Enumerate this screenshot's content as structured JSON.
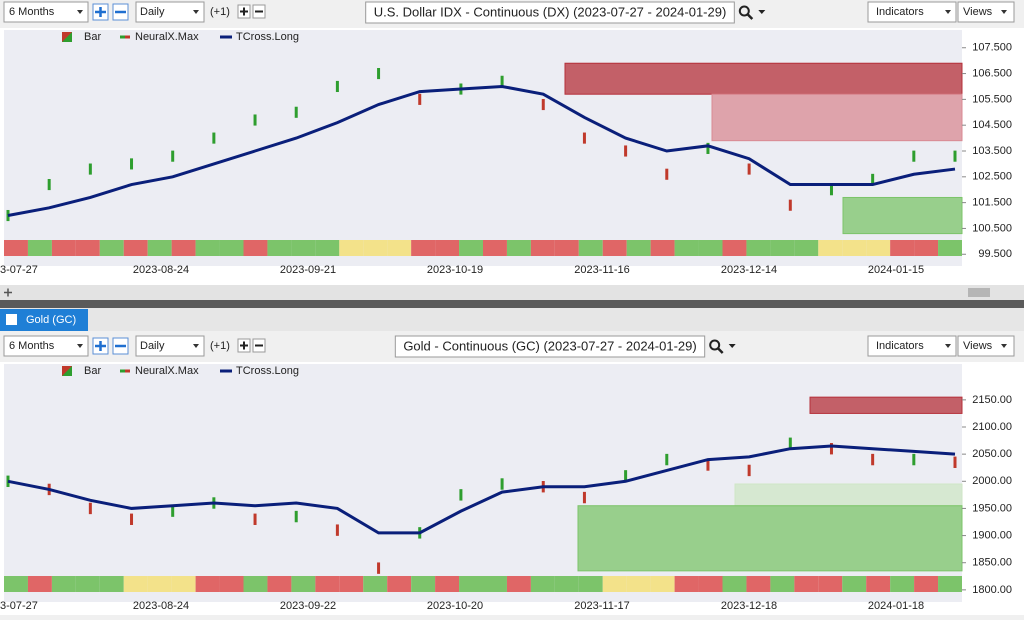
{
  "panels": [
    {
      "toolbar": {
        "period": "6 Months",
        "interval": "Daily",
        "offset": "(+1)",
        "title": "U.S. Dollar IDX - Continuous (DX) (2023-07-27 - 2024-01-29)",
        "indicators": "Indicators",
        "views": "Views"
      },
      "legend": [
        "Bar",
        "NeuralX.Max",
        "TCross.Long"
      ],
      "chart": {
        "type": "line",
        "x_labels": [
          "3-07-27",
          "2023-08-24",
          "2023-09-21",
          "2023-10-19",
          "2023-11-16",
          "2023-12-14",
          "2024-01-15"
        ],
        "series": [
          {
            "color": "#2e9e2e",
            "values": [
              101.0,
              102.2,
              102.8,
              103.0,
              103.3,
              104.0,
              104.7,
              105.0,
              106.0,
              106.5,
              105.5,
              105.9,
              106.2,
              105.3,
              104.0,
              103.5,
              102.6,
              103.6,
              102.8,
              101.4,
              102.0,
              102.4,
              103.3,
              103.3
            ]
          },
          {
            "color": "#0a1f7a",
            "values": [
              101.0,
              101.3,
              101.7,
              102.2,
              102.5,
              103.0,
              103.5,
              104.0,
              104.6,
              105.3,
              105.8,
              105.9,
              106.0,
              105.7,
              104.8,
              104.0,
              103.5,
              103.7,
              103.2,
              102.2,
              102.2,
              102.2,
              102.6,
              102.8
            ]
          }
        ],
        "zones": [
          {
            "low": 105.7,
            "high": 106.9,
            "color": "#b5303a"
          },
          {
            "low": 103.9,
            "high": 105.7,
            "color": "#d98a93"
          },
          {
            "low": 100.3,
            "high": 101.7,
            "color": "#7cc46a"
          }
        ],
        "ylim": [
          99.2,
          107.8
        ],
        "yticks": [
          {
            "value": 107.5,
            "label": "107.500"
          },
          {
            "value": 106.5,
            "label": "106.500"
          },
          {
            "value": 105.5,
            "label": "105.500"
          },
          {
            "value": 104.5,
            "label": "104.500"
          },
          {
            "value": 103.5,
            "label": "103.500"
          },
          {
            "value": 102.5,
            "label": "102.500"
          },
          {
            "value": 101.5,
            "label": "101.500"
          },
          {
            "value": 100.5,
            "label": "100.500"
          },
          {
            "value": 99.5,
            "label": "99.500"
          }
        ]
      }
    },
    {
      "toolbar": {
        "period": "6 Months",
        "interval": "Daily",
        "offset": "(+1)",
        "title": "Gold - Continuous (GC) (2023-07-27 - 2024-01-29)",
        "indicators": "Indicators",
        "views": "Views"
      },
      "legend": [
        "Bar",
        "NeuralX.Max",
        "TCross.Long"
      ],
      "chart": {
        "type": "line",
        "x_labels": [
          "3-07-27",
          "2023-08-24",
          "2023-09-22",
          "2023-10-20",
          "2023-11-17",
          "2023-12-18",
          "2024-01-18"
        ],
        "series": [
          {
            "color": "#2e9e2e",
            "values": [
              2000,
              1985,
              1950,
              1930,
              1945,
              1960,
              1930,
              1935,
              1910,
              1840,
              1905,
              1975,
              1995,
              1990,
              1970,
              2010,
              2040,
              2030,
              2020,
              2070,
              2060,
              2040,
              2040,
              2035
            ]
          },
          {
            "color": "#0a1f7a",
            "values": [
              2000,
              1985,
              1965,
              1950,
              1955,
              1960,
              1955,
              1960,
              1950,
              1905,
              1905,
              1945,
              1980,
              1990,
              1990,
              2000,
              2020,
              2040,
              2045,
              2060,
              2065,
              2060,
              2055,
              2050
            ]
          }
        ],
        "zones": [
          {
            "low": 2125,
            "high": 2155,
            "color": "#b5303a"
          },
          {
            "low": 1955,
            "high": 1995,
            "color": "#cfe6c6"
          },
          {
            "low": 1835,
            "high": 1955,
            "color": "#7cc46a"
          }
        ],
        "ylim": [
          1785,
          2205
        ],
        "yticks": [
          {
            "value": 2150,
            "label": "2150.00"
          },
          {
            "value": 2100,
            "label": "2100.00"
          },
          {
            "value": 2050,
            "label": "2050.00"
          },
          {
            "value": 2000,
            "label": "2000.00"
          },
          {
            "value": 1950,
            "label": "1950.00"
          },
          {
            "value": 1900,
            "label": "1900.00"
          },
          {
            "value": 1850,
            "label": "1850.00"
          },
          {
            "value": 1800,
            "label": "1800.00"
          }
        ]
      }
    }
  ],
  "tab": "Gold (GC)"
}
